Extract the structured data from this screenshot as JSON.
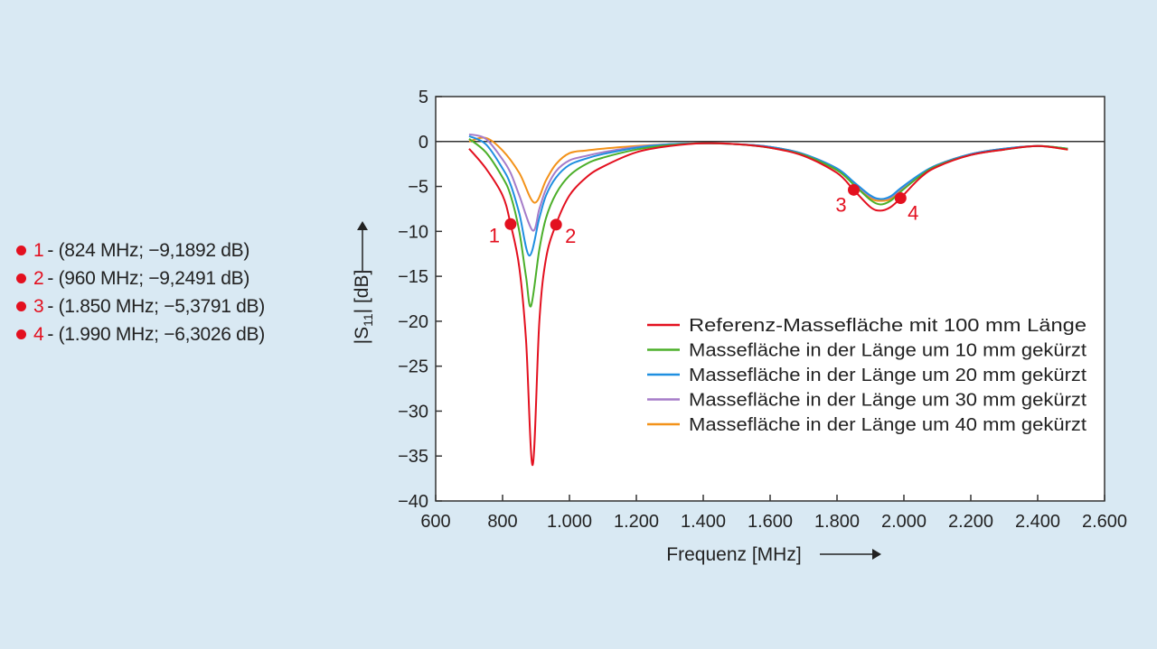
{
  "markers": [
    {
      "n": "1",
      "text": "- (824 MHz; −9,1892 dB)"
    },
    {
      "n": "2",
      "text": "- (960 MHz; −9,2491 dB)"
    },
    {
      "n": "3",
      "text": "- (1.850 MHz; −5,3791 dB)"
    },
    {
      "n": "4",
      "text": "- (1.990 MHz; −6,3026 dB)"
    }
  ],
  "chart_data": {
    "type": "line",
    "xlabel": "Frequenz [MHz]",
    "ylabel": "|S11| [dB]",
    "xlim": [
      600,
      2600
    ],
    "ylim": [
      -40,
      5
    ],
    "xticks": [
      600,
      800,
      1000,
      1200,
      1400,
      1600,
      1800,
      2000,
      2200,
      2400,
      2600
    ],
    "xtick_labels": [
      "600",
      "800",
      "1.000",
      "1.200",
      "1.400",
      "1.600",
      "1.800",
      "2.000",
      "2.200",
      "2.400",
      "2.600"
    ],
    "yticks": [
      5,
      0,
      -5,
      -10,
      -15,
      -20,
      -25,
      -30,
      -35,
      -40
    ],
    "ytick_labels": [
      "5",
      "0",
      "−5",
      "−10",
      "−15",
      "−20",
      "−25",
      "−30",
      "−35",
      "−40"
    ],
    "legend_position": "bottom-right",
    "series": [
      {
        "name": "Referenz-Massefläche mit 100 mm Länge",
        "color": "#e3101f",
        "x": [
          700,
          750,
          800,
          824,
          850,
          870,
          890,
          910,
          930,
          960,
          1000,
          1050,
          1100,
          1200,
          1300,
          1400,
          1500,
          1600,
          1700,
          1800,
          1850,
          1900,
          1930,
          1960,
          1990,
          2050,
          2100,
          2200,
          2300,
          2400,
          2490
        ],
        "y": [
          -0.8,
          -3,
          -6,
          -9.2,
          -14,
          -22,
          -36,
          -20,
          -13,
          -9.2,
          -6,
          -4,
          -2.8,
          -1.2,
          -0.5,
          -0.2,
          -0.3,
          -0.7,
          -1.6,
          -3.5,
          -5.4,
          -7.3,
          -7.7,
          -7.3,
          -6.3,
          -4,
          -2.8,
          -1.5,
          -0.9,
          -0.5,
          -0.9
        ]
      },
      {
        "name": "Massefläche in der Länge um 10 mm gekürzt",
        "color": "#4caf2a",
        "x": [
          700,
          750,
          800,
          824,
          850,
          870,
          885,
          910,
          930,
          960,
          1000,
          1050,
          1100,
          1200,
          1300,
          1400,
          1500,
          1600,
          1700,
          1800,
          1850,
          1900,
          1930,
          1960,
          1990,
          2050,
          2100,
          2200,
          2300,
          2400,
          2490
        ],
        "y": [
          0.3,
          -1.2,
          -4,
          -6,
          -10,
          -15,
          -18.3,
          -12,
          -8.5,
          -5.8,
          -3.8,
          -2.5,
          -1.8,
          -0.9,
          -0.4,
          -0.2,
          -0.3,
          -0.7,
          -1.5,
          -3.2,
          -4.8,
          -6.5,
          -7,
          -6.6,
          -5.6,
          -3.8,
          -2.7,
          -1.5,
          -0.9,
          -0.5,
          -0.8
        ]
      },
      {
        "name": "Massefläche in der Länge um 20 mm gekürzt",
        "color": "#1f8fe0",
        "x": [
          700,
          750,
          800,
          824,
          850,
          880,
          910,
          930,
          960,
          1000,
          1050,
          1100,
          1200,
          1300,
          1400,
          1500,
          1600,
          1700,
          1800,
          1850,
          1900,
          1930,
          1960,
          1990,
          2050,
          2100,
          2200,
          2300,
          2400,
          2490
        ],
        "y": [
          0.6,
          -0.3,
          -3,
          -4.8,
          -8,
          -12.7,
          -8.5,
          -6,
          -4,
          -2.6,
          -1.9,
          -1.4,
          -0.7,
          -0.3,
          -0.2,
          -0.3,
          -0.6,
          -1.4,
          -3,
          -4.5,
          -6,
          -6.4,
          -6.1,
          -5.2,
          -3.6,
          -2.6,
          -1.4,
          -0.8,
          -0.5,
          -0.8
        ]
      },
      {
        "name": "Massefläche in der Länge um 30 mm gekürzt",
        "color": "#a57cc9",
        "x": [
          700,
          750,
          800,
          824,
          850,
          890,
          910,
          930,
          960,
          1000,
          1050,
          1100,
          1200,
          1300,
          1400,
          1500,
          1600,
          1700,
          1800,
          1850,
          1900,
          1930,
          1960,
          1990,
          2050,
          2100,
          2200,
          2300,
          2400,
          2490
        ],
        "y": [
          0.8,
          0.3,
          -2,
          -3.5,
          -6,
          -9.9,
          -7.5,
          -5.3,
          -3.3,
          -2.1,
          -1.6,
          -1.2,
          -0.6,
          -0.3,
          -0.2,
          -0.3,
          -0.6,
          -1.4,
          -3,
          -4.6,
          -6.1,
          -6.4,
          -6.2,
          -5.3,
          -3.7,
          -2.6,
          -1.4,
          -0.8,
          -0.5,
          -0.8
        ]
      },
      {
        "name": "Massefläche in der Länge um 40 mm gekürzt",
        "color": "#f39219",
        "x": [
          700,
          750,
          800,
          850,
          895,
          930,
          960,
          1000,
          1050,
          1100,
          1200,
          1300,
          1400,
          1500,
          1600,
          1700,
          1800,
          1850,
          1900,
          1930,
          1960,
          1990,
          2050,
          2100,
          2200,
          2300,
          2400,
          2490
        ],
        "y": [
          0,
          0.4,
          -1,
          -3.5,
          -6.8,
          -4.3,
          -2.5,
          -1.3,
          -1,
          -0.8,
          -0.5,
          -0.3,
          -0.2,
          -0.3,
          -0.6,
          -1.4,
          -3.1,
          -4.7,
          -6.3,
          -6.6,
          -6.4,
          -5.4,
          -3.7,
          -2.6,
          -1.4,
          -0.8,
          -0.5,
          -0.9
        ]
      }
    ],
    "annotations": [
      {
        "label": "1",
        "x": 824,
        "y": -9.1892
      },
      {
        "label": "2",
        "x": 960,
        "y": -9.2491
      },
      {
        "label": "3",
        "x": 1850,
        "y": -5.3791
      },
      {
        "label": "4",
        "x": 1990,
        "y": -6.3026
      }
    ]
  }
}
